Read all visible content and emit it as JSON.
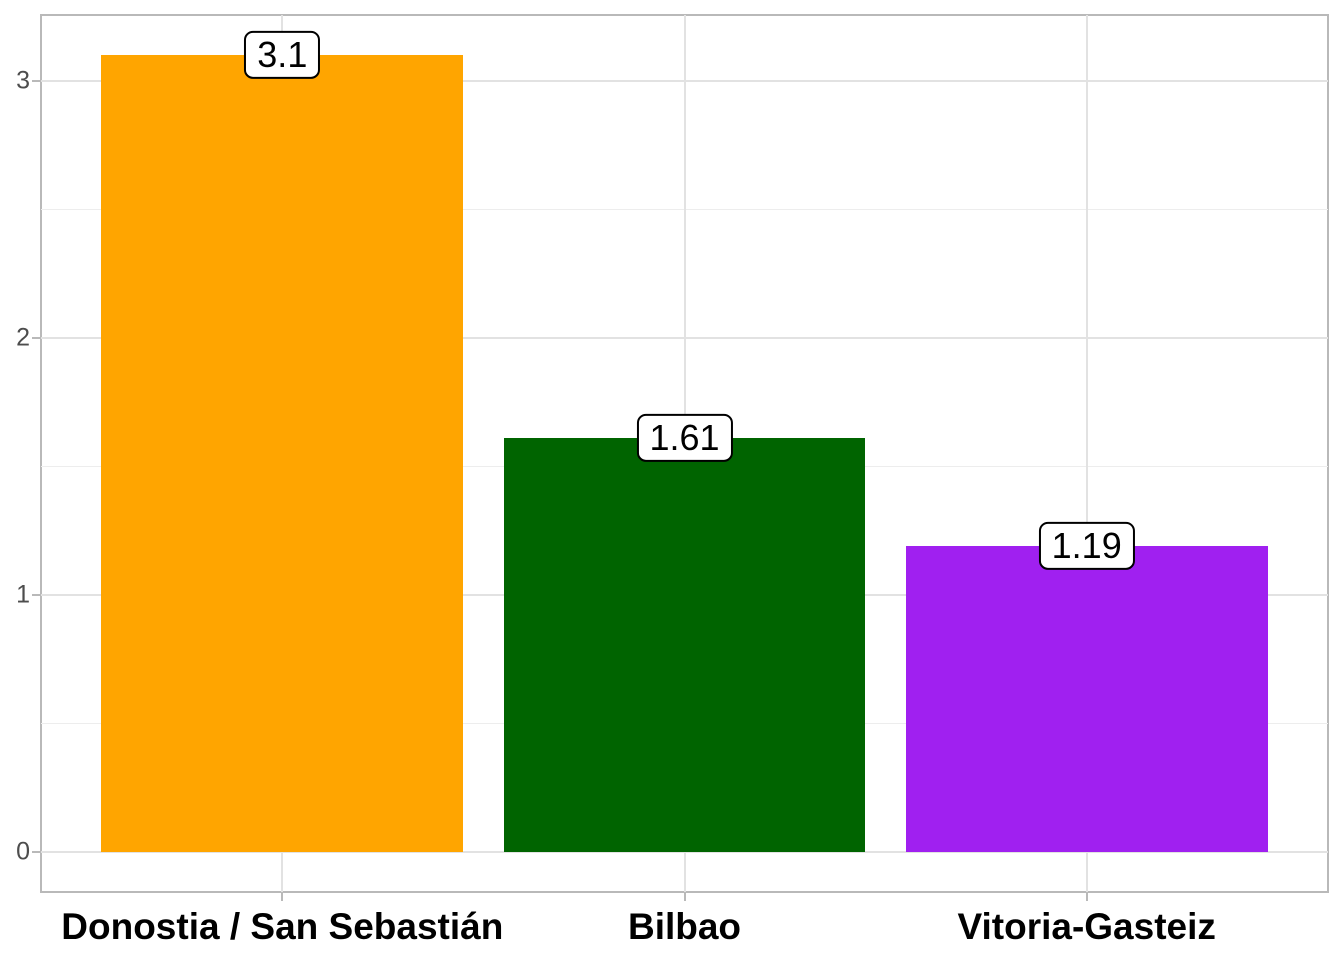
{
  "chart_data": {
    "type": "bar",
    "title": "",
    "xlabel": "",
    "ylabel": "",
    "categories": [
      "Donostia / San Sebastián",
      "Bilbao",
      "Vitoria-Gasteiz"
    ],
    "values": [
      3.1,
      1.61,
      1.19
    ],
    "value_labels": [
      "3.1",
      "1.61",
      "1.19"
    ],
    "bar_colors": [
      "#FFA500",
      "#006400",
      "#A020F0"
    ],
    "y_axis": {
      "major_ticks": [
        0,
        1,
        2,
        3
      ],
      "minor_ticks": [
        0.5,
        1.5,
        2.5
      ],
      "range": [
        -0.155,
        3.255
      ]
    },
    "x_axis": {
      "positions": [
        1,
        2,
        3
      ],
      "range": [
        0.4,
        3.6
      ],
      "bar_width": 0.9
    },
    "grid": "major+minor",
    "legend": false,
    "colors": {
      "page_background": "#FFFFFF",
      "panel_background": "#FFFFFF",
      "panel_border": "#B9B9B9",
      "grid_major": "#E2E2E2",
      "grid_minor": "#EDEDED",
      "tick_mark": "#B9B9B9",
      "y_label_text": "#4D4D4D",
      "x_label_text": "#000000",
      "value_label_bg": "#FFFFFF",
      "value_label_border": "#000000",
      "value_label_text": "#000000"
    }
  }
}
